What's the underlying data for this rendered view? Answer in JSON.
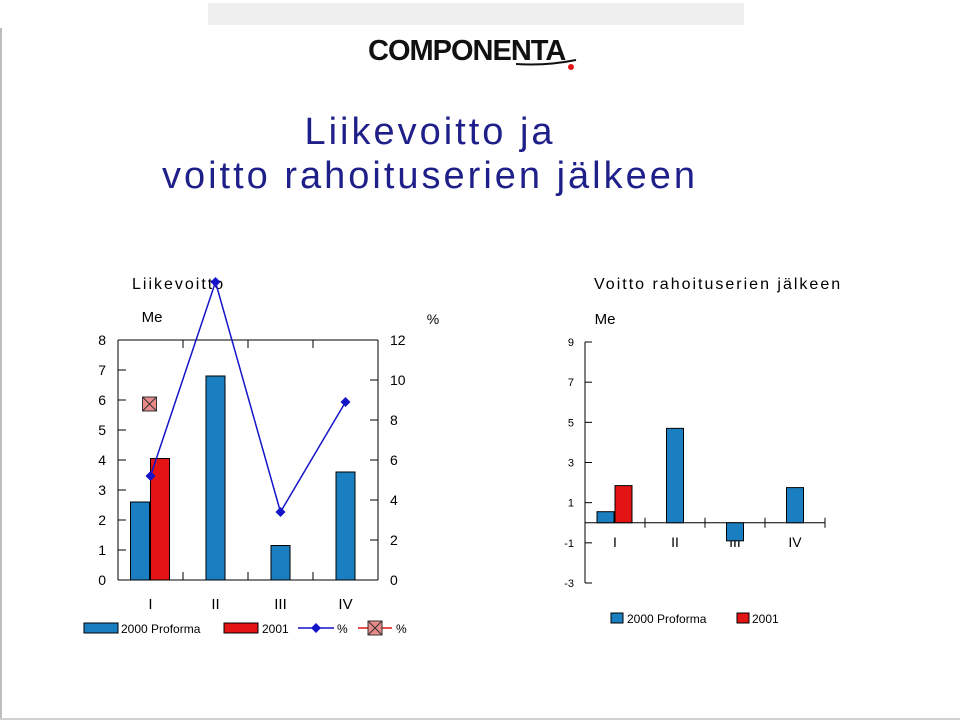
{
  "logo": {
    "text": "COMPONENTA"
  },
  "title": {
    "line1": "Liikevoitto ja",
    "line2": "voitto rahoituserien jälkeen"
  },
  "colors": {
    "blue": "#1a7fc1",
    "red": "#e21414",
    "navy": "#1414c8",
    "title": "#1f1f8a"
  },
  "chart_data": [
    {
      "type": "bar",
      "title": "Liikevoitto",
      "ylabel_left": "Me",
      "ylabel_right": "%",
      "categories": [
        "I",
        "II",
        "III",
        "IV"
      ],
      "ylim": [
        0,
        8
      ],
      "yticks": [
        "0",
        "1",
        "2",
        "3",
        "4",
        "5",
        "6",
        "7",
        "8"
      ],
      "y2lim": [
        0,
        12
      ],
      "y2ticks": [
        "0",
        "2",
        "4",
        "6",
        "8",
        "10",
        "12"
      ],
      "series": [
        {
          "name": "2000 Proforma",
          "kind": "bar",
          "color": "#1a7fc1",
          "values": [
            2.6,
            6.8,
            1.15,
            3.6
          ]
        },
        {
          "name": "2001",
          "kind": "bar",
          "color": "#e21414",
          "values": [
            4.05,
            null,
            null,
            null
          ]
        },
        {
          "name": "%",
          "kind": "line",
          "axis": "right",
          "color": "#1414c8",
          "marker": "diamond",
          "values": [
            5.2,
            14.9,
            3.4,
            8.9
          ]
        },
        {
          "name": "%",
          "kind": "marker",
          "axis": "right",
          "color": "#e21414",
          "marker": "x-square",
          "values": [
            8.8,
            null,
            null,
            null
          ]
        }
      ],
      "legend": "bottom"
    },
    {
      "type": "bar",
      "title": "Voitto rahoituserien jälkeen",
      "ylabel": "Me",
      "categories": [
        "I",
        "II",
        "III",
        "IV"
      ],
      "ylim": [
        -3,
        9
      ],
      "yticks": [
        "-3",
        "-1",
        "1",
        "3",
        "5",
        "7",
        "9"
      ],
      "series": [
        {
          "name": "2000 Proforma",
          "color": "#1a7fc1",
          "values": [
            0.55,
            4.7,
            -0.9,
            1.75
          ]
        },
        {
          "name": "2001",
          "color": "#e21414",
          "values": [
            1.85,
            null,
            null,
            null
          ]
        }
      ],
      "legend": "bottom"
    }
  ]
}
